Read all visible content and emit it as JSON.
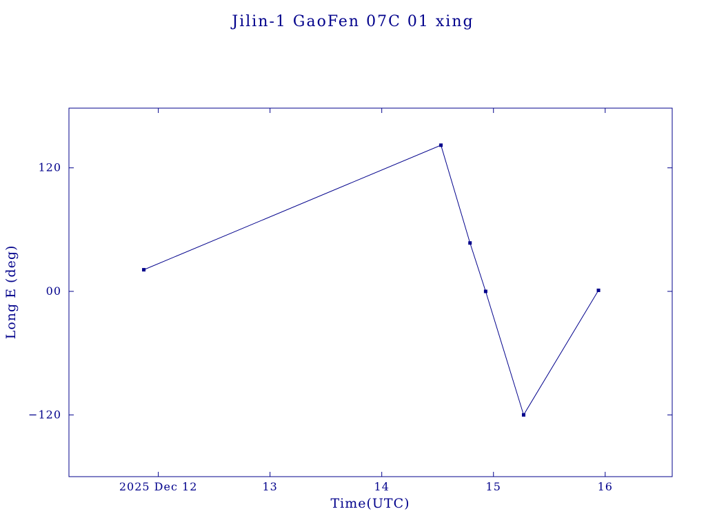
{
  "page_title": "Jilin-1 GaoFen 07C 01 xing",
  "chart_data": {
    "type": "line",
    "title": "Jilin-1 GaoFen 07C 01 xing",
    "xlabel": "Time(UTC)",
    "ylabel": "Long E (deg)",
    "grid": false,
    "legend": "none",
    "xlim": [
      11.2,
      16.6
    ],
    "ylim": [
      -180,
      178
    ],
    "x_ticks": [
      {
        "value": 12,
        "label": "2025 Dec 12"
      },
      {
        "value": 13,
        "label": "13"
      },
      {
        "value": 14,
        "label": "14"
      },
      {
        "value": 15,
        "label": "15"
      },
      {
        "value": 16,
        "label": "16"
      }
    ],
    "y_ticks": [
      {
        "value": 120,
        "label": "120"
      },
      {
        "value": 0,
        "label": "00"
      },
      {
        "value": -120,
        "label": "−120"
      }
    ],
    "series": [
      {
        "name": "Long E (deg)",
        "x": [
          11.87,
          14.53,
          14.79,
          14.93,
          15.27,
          15.94
        ],
        "y": [
          21,
          142,
          47,
          0,
          -120,
          1
        ]
      }
    ],
    "marker": "square",
    "colors": {
      "line": "#00008b",
      "marker": "#00008b",
      "frame": "#00008b",
      "text": "#00008b",
      "background": "#ffffff"
    }
  }
}
